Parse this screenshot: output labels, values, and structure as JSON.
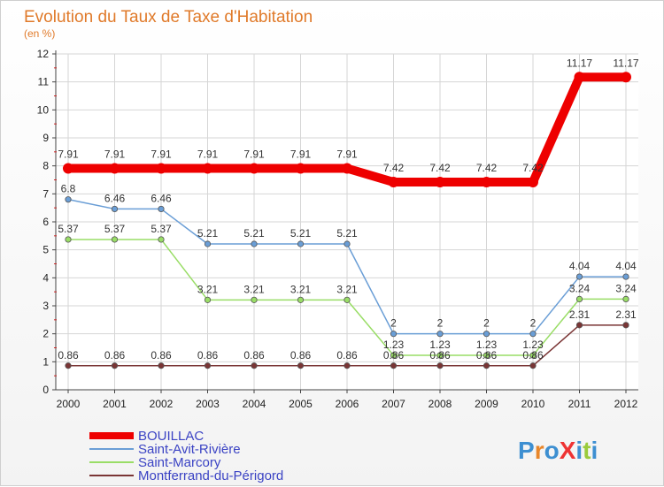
{
  "chart_data": {
    "type": "line",
    "title": "Evolution du Taux de Taxe d'Habitation",
    "subtitle": "(en %)",
    "xlabel": "",
    "ylabel": "",
    "x": [
      "2000",
      "2001",
      "2002",
      "2003",
      "2004",
      "2005",
      "2006",
      "2007",
      "2008",
      "2009",
      "2010",
      "2011",
      "2012"
    ],
    "ylim": [
      0,
      12
    ],
    "yticks": [
      "0",
      "1",
      "2",
      "3",
      "4",
      "5",
      "6",
      "7",
      "8",
      "9",
      "10",
      "11",
      "12"
    ],
    "grid": true,
    "legend_position": "bottom-left",
    "series": [
      {
        "name": "BOUILLAC",
        "color": "#ee0000",
        "values": [
          7.91,
          7.91,
          7.91,
          7.91,
          7.91,
          7.91,
          7.91,
          7.42,
          7.42,
          7.42,
          7.42,
          11.17,
          11.17
        ],
        "labels": [
          "7.91",
          "7.91",
          "7.91",
          "7.91",
          "7.91",
          "7.91",
          "7.91",
          "7.42",
          "7.42",
          "7.42",
          "7.42",
          "11.17",
          "11.17"
        ]
      },
      {
        "name": "Saint-Avit-Rivière",
        "color": "#6a9ed6",
        "values": [
          6.8,
          6.46,
          6.46,
          5.21,
          5.21,
          5.21,
          5.21,
          2,
          2,
          2,
          2,
          4.04,
          4.04
        ],
        "labels": [
          "6.8",
          "6.46",
          "6.46",
          "5.21",
          "5.21",
          "5.21",
          "5.21",
          "2",
          "2",
          "2",
          "2",
          "4.04",
          "4.04"
        ]
      },
      {
        "name": "Saint-Marcory",
        "color": "#99dd66",
        "values": [
          5.37,
          5.37,
          5.37,
          3.21,
          3.21,
          3.21,
          3.21,
          1.23,
          1.23,
          1.23,
          1.23,
          3.24,
          3.24
        ],
        "labels": [
          "5.37",
          "5.37",
          "5.37",
          "3.21",
          "3.21",
          "3.21",
          "3.21",
          "1.23",
          "1.23",
          "1.23",
          "1.23",
          "3.24",
          "3.24"
        ]
      },
      {
        "name": "Montferrand-du-Périgord",
        "color": "#7a3535",
        "values": [
          0.86,
          0.86,
          0.86,
          0.86,
          0.86,
          0.86,
          0.86,
          0.86,
          0.86,
          0.86,
          0.86,
          2.31,
          2.31
        ],
        "labels": [
          "0.86",
          "0.86",
          "0.86",
          "0.86",
          "0.86",
          "0.86",
          "0.86",
          "0.86",
          "0.86",
          "0.86",
          "0.86",
          "2.31",
          "2.31"
        ]
      }
    ]
  },
  "logo": {
    "text": "ProXiti"
  }
}
